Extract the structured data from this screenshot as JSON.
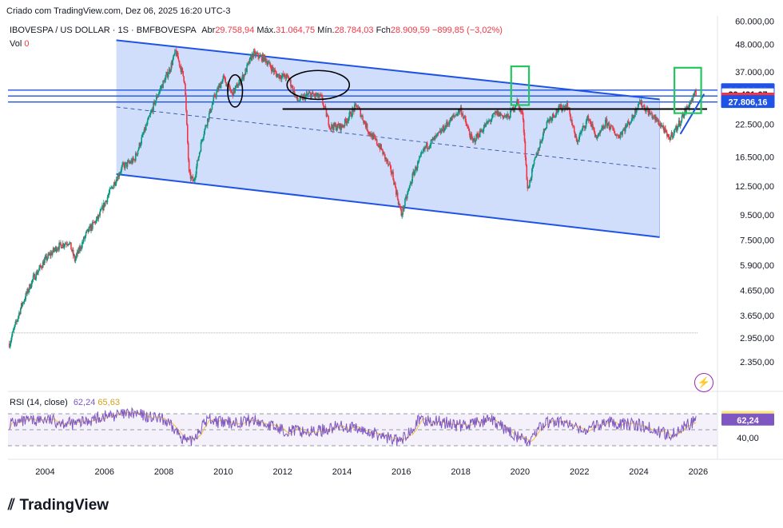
{
  "header": {
    "created": "Criado com TradingView.com, Dez 06, 2025 16:20 UTC-3",
    "symbol": "IBOVESPA / US DOLLAR · 1S · BMFBOVESPA",
    "open_label": "Abr",
    "open": "29.758,94",
    "high_label": "Máx.",
    "high": "31.064,75",
    "low_label": "Mín.",
    "low": "28.784,03",
    "close_label": "Fch",
    "close": "28.909,59",
    "change": "−899,85 (−3,02%)",
    "vol_label": "Vol",
    "vol_value": "0"
  },
  "rsi": {
    "label": "RSI (14, close)",
    "value1": "62,24",
    "value2": "65,63"
  },
  "branding": {
    "logo_text": "TradingView",
    "alert_icon": "alert-clock-icon"
  },
  "colors": {
    "candle_up": "#089981",
    "candle_down": "#f23645",
    "channel_fill": "#c8d8fb",
    "channel_line": "#1e53e5",
    "rsi_line": "#7e57c2",
    "rsi_ma": "#f5c23b",
    "green_box": "#22c55e"
  },
  "chart_data": {
    "type": "candlestick",
    "scale": "log",
    "x_ticks": [
      "2004",
      "2006",
      "2008",
      "2010",
      "2012",
      "2014",
      "2016",
      "2018",
      "2020",
      "2022",
      "2024",
      "2026"
    ],
    "y_ticks": [
      "60.000,00",
      "48.000,00",
      "37.000,00",
      "22.500,00",
      "16.500,00",
      "12.500,00",
      "9.500,00",
      "7.500,00",
      "5.900,00",
      "4.650,00",
      "3.650,00",
      "2.950,00",
      "2.350,00"
    ],
    "y_tick_values": [
      60000,
      48000,
      37000,
      22500,
      16500,
      12500,
      9500,
      7500,
      5900,
      4650,
      3650,
      2950,
      2350
    ],
    "ylim": [
      2100,
      62000
    ],
    "price_tags": [
      {
        "label": "31.124,40",
        "value": 31124,
        "kind": "blue"
      },
      {
        "label": "29.431,67",
        "value": 29431,
        "kind": "outline"
      },
      {
        "label": "28.909,59",
        "value": 28909,
        "kind": "red"
      },
      {
        "label": "27.806,16",
        "value": 27806,
        "kind": "blue"
      }
    ],
    "series": [
      {
        "name": "IBOVESPA / US DOLLAR",
        "points": [
          [
            2002.8,
            2800
          ],
          [
            2003.2,
            4000
          ],
          [
            2003.6,
            5200
          ],
          [
            2004.0,
            6200
          ],
          [
            2004.4,
            7000
          ],
          [
            2004.8,
            7400
          ],
          [
            2005.0,
            6200
          ],
          [
            2005.4,
            8000
          ],
          [
            2005.8,
            9300
          ],
          [
            2006.2,
            12000
          ],
          [
            2006.6,
            15000
          ],
          [
            2007.0,
            16000
          ],
          [
            2007.4,
            22000
          ],
          [
            2007.8,
            30000
          ],
          [
            2008.2,
            38000
          ],
          [
            2008.4,
            45000
          ],
          [
            2008.7,
            34000
          ],
          [
            2008.85,
            14000
          ],
          [
            2009.0,
            13000
          ],
          [
            2009.3,
            20000
          ],
          [
            2009.7,
            29000
          ],
          [
            2010.0,
            35000
          ],
          [
            2010.3,
            30000
          ],
          [
            2010.7,
            36000
          ],
          [
            2011.0,
            44000
          ],
          [
            2011.4,
            42000
          ],
          [
            2011.8,
            36000
          ],
          [
            2012.2,
            35000
          ],
          [
            2012.5,
            28000
          ],
          [
            2012.9,
            30000
          ],
          [
            2013.3,
            29000
          ],
          [
            2013.6,
            22000
          ],
          [
            2014.0,
            22000
          ],
          [
            2014.5,
            27000
          ],
          [
            2014.9,
            21000
          ],
          [
            2015.3,
            18000
          ],
          [
            2015.7,
            14000
          ],
          [
            2016.0,
            9500
          ],
          [
            2016.4,
            14000
          ],
          [
            2016.8,
            18000
          ],
          [
            2017.2,
            20000
          ],
          [
            2017.6,
            23000
          ],
          [
            2018.0,
            26000
          ],
          [
            2018.4,
            19000
          ],
          [
            2018.8,
            22000
          ],
          [
            2019.2,
            25000
          ],
          [
            2019.6,
            24000
          ],
          [
            2019.9,
            28000
          ],
          [
            2020.1,
            24000
          ],
          [
            2020.25,
            12000
          ],
          [
            2020.5,
            16000
          ],
          [
            2020.9,
            23000
          ],
          [
            2021.3,
            26000
          ],
          [
            2021.6,
            27000
          ],
          [
            2021.9,
            19000
          ],
          [
            2022.3,
            24000
          ],
          [
            2022.6,
            19500
          ],
          [
            2022.9,
            23000
          ],
          [
            2023.3,
            20000
          ],
          [
            2023.8,
            24000
          ],
          [
            2024.0,
            28000
          ],
          [
            2024.5,
            24000
          ],
          [
            2024.8,
            22000
          ],
          [
            2025.0,
            19500
          ],
          [
            2025.3,
            22000
          ],
          [
            2025.6,
            26000
          ],
          [
            2025.9,
            30000
          ],
          [
            2025.95,
            28909
          ]
        ]
      },
      {
        "name": "RSI",
        "points": [
          [
            2002.8,
            58
          ],
          [
            2004,
            63
          ],
          [
            2005,
            57
          ],
          [
            2006,
            67
          ],
          [
            2007,
            70
          ],
          [
            2008,
            62
          ],
          [
            2008.85,
            33
          ],
          [
            2009.5,
            64
          ],
          [
            2010,
            58
          ],
          [
            2011,
            62
          ],
          [
            2012,
            50
          ],
          [
            2013,
            47
          ],
          [
            2014,
            55
          ],
          [
            2015,
            46
          ],
          [
            2016,
            35
          ],
          [
            2016.5,
            60
          ],
          [
            2017,
            62
          ],
          [
            2018,
            55
          ],
          [
            2019,
            62
          ],
          [
            2020.25,
            34
          ],
          [
            2020.8,
            58
          ],
          [
            2021.5,
            60
          ],
          [
            2022,
            48
          ],
          [
            2023,
            60
          ],
          [
            2024,
            56
          ],
          [
            2025,
            44
          ],
          [
            2025.95,
            62.24
          ]
        ]
      }
    ],
    "rsi_levels": [
      70,
      50,
      30
    ],
    "rsi_tags": [
      {
        "label": "65,63",
        "value": 65.63,
        "kind": "yellow"
      },
      {
        "label": "62,24",
        "value": 62.24,
        "kind": "purple"
      },
      {
        "label": "40,00",
        "value": 40,
        "kind": "plain"
      }
    ],
    "drawings": {
      "channel_upper": [
        [
          2006.4,
          50000
        ],
        [
          2024.7,
          28500
        ]
      ],
      "channel_lower": [
        [
          2006.4,
          14000
        ],
        [
          2024.7,
          7700
        ]
      ],
      "channel_mid": [
        [
          2006.4,
          26500
        ],
        [
          2024.7,
          14700
        ]
      ],
      "support": [
        [
          2012.0,
          26000
        ],
        [
          2026.3,
          26000
        ]
      ],
      "breakout": [
        [
          2025.4,
          20500
        ],
        [
          2026.2,
          30000
        ]
      ],
      "base_line": [
        [
          2002.8,
          3100
        ],
        [
          2026.0,
          3100
        ]
      ],
      "green_boxes": [
        {
          "x0": 2019.7,
          "x1": 2020.3,
          "y0": 27000,
          "y1": 39000
        },
        {
          "x0": 2025.2,
          "x1": 2026.1,
          "y0": 25000,
          "y1": 38500
        }
      ],
      "ellipses": [
        {
          "cx": 2010.4,
          "cy": 31000,
          "rx": 0.25,
          "ry_hi": 36000,
          "ry_lo": 26500
        },
        {
          "cx": 2013.2,
          "cy": 32500,
          "rx": 1.05,
          "ry_hi": 37500,
          "ry_lo": 28500
        }
      ],
      "horizontals": [
        31124,
        29431,
        27806
      ]
    }
  }
}
